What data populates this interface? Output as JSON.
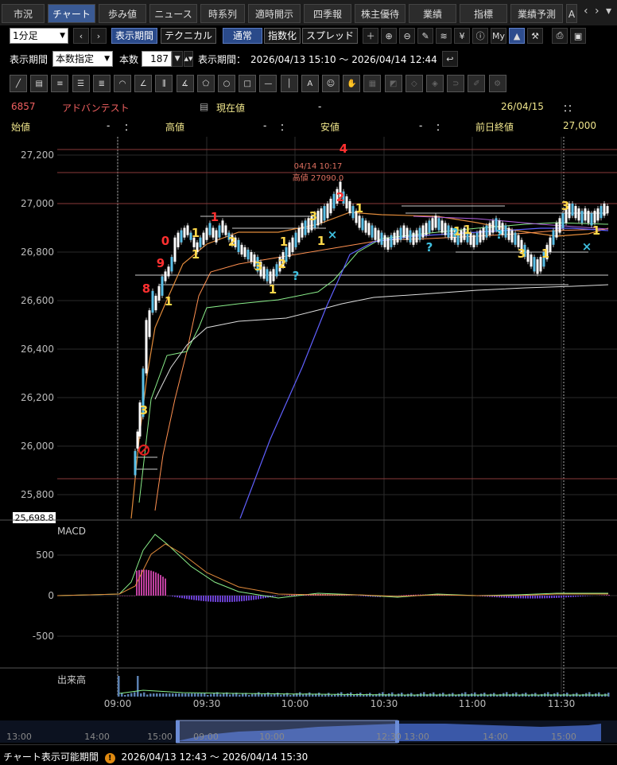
{
  "tabs": [
    "市況",
    "チャート",
    "歩み値",
    "ニュース",
    "時系列",
    "適時開示",
    "四季報",
    "株主優待",
    "業績",
    "指標",
    "業績予測",
    "A"
  ],
  "active_tab": "チャート",
  "toolbar": {
    "interval": "1分足",
    "display_period_btn": "表示期間",
    "technical_btn": "テクニカル",
    "normal_btn": "通常",
    "index_btn": "指数化",
    "spread_btn": "スプレッド"
  },
  "period": {
    "label": "表示期間",
    "mode": "本数指定",
    "count_label": "本数",
    "count": "187",
    "range_label": "表示期間：",
    "range": "2026/04/13 15:10 ～ 2026/04/14 12:44"
  },
  "stock": {
    "code": "6857",
    "name": "アドバンテスト",
    "current_label": "現在値",
    "current_value": "-",
    "date": "26/04/15",
    "time": "：：",
    "open_label": "始値",
    "open_value": "-",
    "open_time": "：",
    "high_label": "高値",
    "high_value": "-",
    "high_time": "：",
    "low_label": "安値",
    "low_value": "-",
    "low_time": "：",
    "prev_close_label": "前日終値",
    "prev_close_value": "27,000"
  },
  "chart_data": {
    "type": "candlestick",
    "y_ticks": [
      "27,200",
      "27,000",
      "26,800",
      "26,600",
      "26,400",
      "26,200",
      "26,000",
      "25,800"
    ],
    "y_range": [
      25698.8,
      27250
    ],
    "current_price_label": "25,698.8",
    "x_ticks": [
      "09:00",
      "09:30",
      "10:00",
      "10:30",
      "11:00",
      "11:30"
    ],
    "annotation": {
      "time": "04/14 10:17",
      "text": "高値 27090.0"
    },
    "macd_label": "MACD",
    "macd_ticks": [
      "500",
      "0",
      "-500"
    ],
    "volume_label": "出来高",
    "counts": [
      {
        "t": "3",
        "c": "#ffd84a"
      },
      {
        "t": "8",
        "c": "#ff3030"
      },
      {
        "t": "9",
        "c": "#ff3030"
      },
      {
        "t": "0",
        "c": "#ff3030"
      },
      {
        "t": "1",
        "c": "#ffd84a"
      },
      {
        "t": "1",
        "c": "#ff3030"
      },
      {
        "t": "1",
        "c": "#ffd84a"
      },
      {
        "t": "2",
        "c": "#ffd84a"
      },
      {
        "t": "3",
        "c": "#ffd84a"
      },
      {
        "t": "1",
        "c": "#ffd84a"
      },
      {
        "t": "2",
        "c": "#ffd84a"
      },
      {
        "t": "1",
        "c": "#ffd84a"
      },
      {
        "t": "3",
        "c": "#ffd84a"
      },
      {
        "t": "1",
        "c": "#ffd84a"
      },
      {
        "t": "2",
        "c": "#ff3030"
      },
      {
        "t": "4",
        "c": "#ff3030"
      },
      {
        "t": "1",
        "c": "#ffd84a"
      },
      {
        "t": "1",
        "c": "#ffd84a"
      },
      {
        "t": "1",
        "c": "#ffd84a"
      },
      {
        "t": "3",
        "c": "#ffd84a"
      },
      {
        "t": "1",
        "c": "#ffd84a"
      },
      {
        "t": "3",
        "c": "#ffd84a"
      },
      {
        "t": "1",
        "c": "#ffd84a"
      },
      {
        "t": "1",
        "c": "#ffd84a"
      },
      {
        "t": "?",
        "c": "#3fc0e0"
      },
      {
        "t": "?",
        "c": "#3fc0e0"
      },
      {
        "t": "?",
        "c": "#3fc0e0"
      },
      {
        "t": "?",
        "c": "#3fc0e0"
      },
      {
        "t": "×",
        "c": "#3fc0e0"
      },
      {
        "t": "×",
        "c": "#3fc0e0"
      }
    ]
  },
  "navigator": {
    "ticks": [
      "13:00",
      "14:00",
      "15:00",
      "09:00",
      "10:00",
      "12:30",
      "13:00",
      "14:00",
      "15:00"
    ]
  },
  "footer": {
    "label": "チャート表示可能期間",
    "range": "2026/04/13 12:43 ～ 2026/04/14 15:30"
  }
}
